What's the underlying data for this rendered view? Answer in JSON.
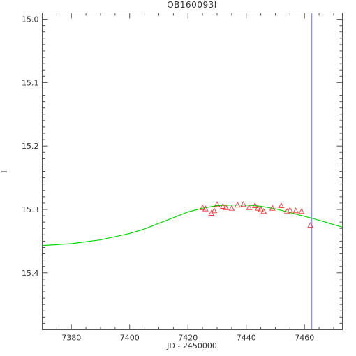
{
  "chart_data": {
    "type": "scatter",
    "title": "OB160093I",
    "xlabel": "JD - 2450000",
    "ylabel": "I",
    "xlim": [
      7370,
      7473
    ],
    "ylim": [
      15.49,
      14.99
    ],
    "y_inverted": true,
    "grid": false,
    "x_ticks": [
      7380,
      7400,
      7420,
      7440,
      7460
    ],
    "x_tick_labels": [
      "7380",
      "7400",
      "7420",
      "7440",
      "7460"
    ],
    "y_ticks": [
      15.0,
      15.1,
      15.2,
      15.3,
      15.4
    ],
    "y_tick_labels": [
      "15.0",
      "15.1",
      "15.2",
      "15.3",
      "15.4"
    ],
    "series": [
      {
        "marker": "triangle",
        "color": "#ff3333",
        "x": [
          7425,
          7426,
          7428,
          7429,
          7430,
          7432,
          7433,
          7435,
          7437,
          7439,
          7441,
          7443,
          7444,
          7445,
          7446,
          7449,
          7452,
          7454,
          7455,
          7457,
          7459,
          7462
        ],
        "y": [
          15.297,
          15.299,
          15.306,
          15.302,
          15.292,
          15.295,
          15.297,
          15.298,
          15.293,
          15.292,
          15.297,
          15.294,
          15.298,
          15.3,
          15.303,
          15.298,
          15.294,
          15.303,
          15.301,
          15.302,
          15.303,
          15.325
        ]
      },
      {
        "marker": "line",
        "color": "#00dd00",
        "x": [
          7370,
          7380,
          7390,
          7400,
          7405,
          7410,
          7415,
          7420,
          7425,
          7430,
          7435,
          7440,
          7445,
          7450,
          7455,
          7460,
          7465,
          7470,
          7473
        ],
        "y": [
          15.357,
          15.354,
          15.348,
          15.338,
          15.331,
          15.322,
          15.313,
          15.304,
          15.298,
          15.294,
          15.293,
          15.293,
          15.295,
          15.299,
          15.305,
          15.311,
          15.317,
          15.324,
          15.328
        ]
      }
    ],
    "vertical_line": {
      "x": 7462.5,
      "color": "#7777ff"
    }
  }
}
